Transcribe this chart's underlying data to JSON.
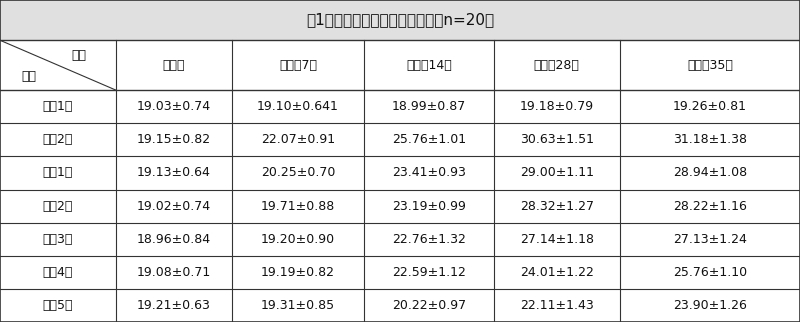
{
  "title": "表1：给药前后眼压对比情况表（n=20）",
  "header_top_text": "眼压",
  "header_bot_text": "组别",
  "col_headers": [
    "给药前",
    "实验第7天",
    "实验第14天",
    "实验第28天",
    "实验第35天"
  ],
  "row_labels": [
    "对照1组",
    "对照2组",
    "实验1组",
    "实验2组",
    "实验3组",
    "实验4组",
    "实验5组"
  ],
  "table_data": [
    [
      "19.03±0.74",
      "19.10±0.641",
      "18.99±0.87",
      "19.18±0.79",
      "19.26±0.81"
    ],
    [
      "19.15±0.82",
      "22.07±0.91",
      "25.76±1.01",
      "30.63±1.51",
      "31.18±1.38"
    ],
    [
      "19.13±0.64",
      "20.25±0.70",
      "23.41±0.93",
      "29.00±1.11",
      "28.94±1.08"
    ],
    [
      "19.02±0.74",
      "19.71±0.88",
      "23.19±0.99",
      "28.32±1.27",
      "28.22±1.16"
    ],
    [
      "18.96±0.84",
      "19.20±0.90",
      "22.76±1.32",
      "27.14±1.18",
      "27.13±1.24"
    ],
    [
      "19.08±0.71",
      "19.19±0.82",
      "22.59±1.12",
      "24.01±1.22",
      "25.76±1.10"
    ],
    [
      "19.21±0.63",
      "19.31±0.85",
      "20.22±0.97",
      "22.11±1.43",
      "23.90±1.26"
    ]
  ],
  "bg_color": "#ffffff",
  "title_bg": "#e0e0e0",
  "line_color": "#333333",
  "text_color": "#111111",
  "font_size": 9.0,
  "title_font_size": 11.0
}
